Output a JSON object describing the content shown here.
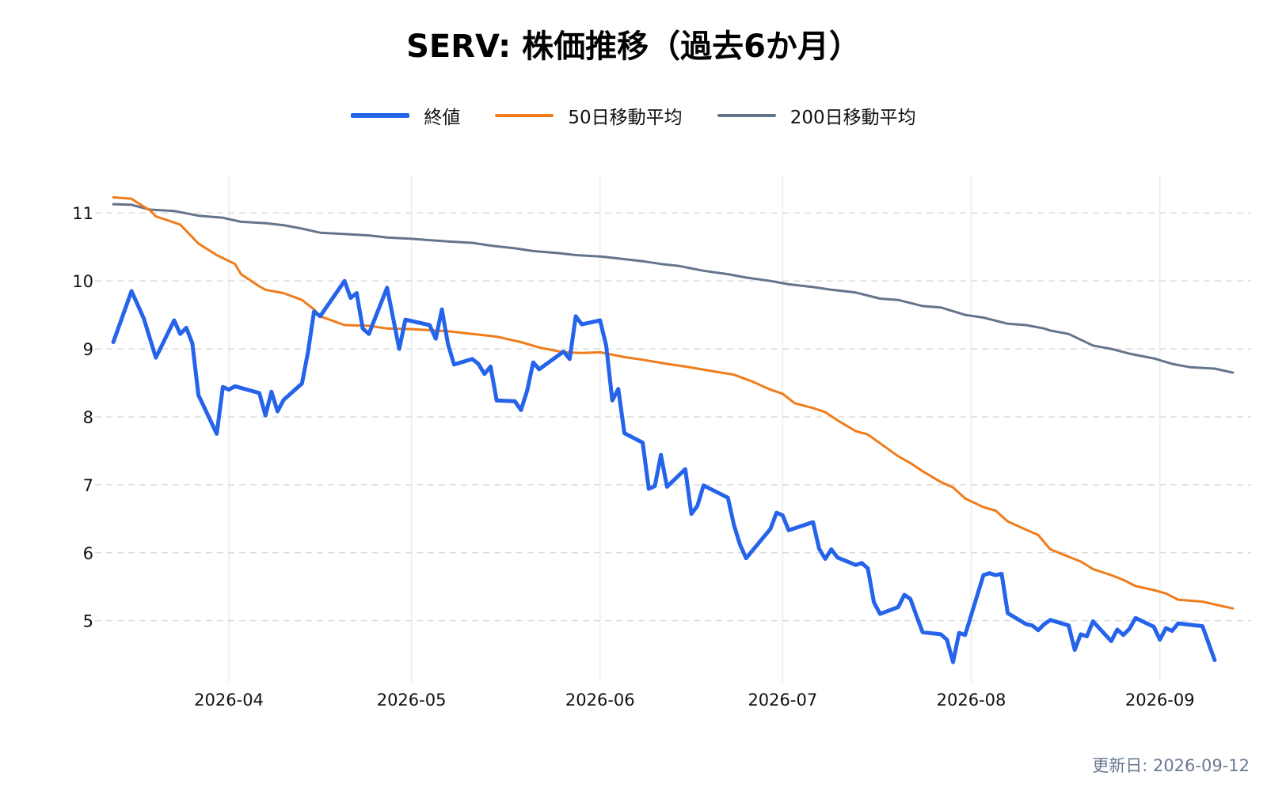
{
  "footer": {
    "updated": "更新日: 2026-09-12"
  },
  "chart_data": {
    "type": "line",
    "title": "SERV: 株価推移（過去6か月）",
    "xlabel": "",
    "ylabel": "",
    "xlim": [
      "2026-03-10",
      "2026-09-16"
    ],
    "ylim": [
      4.1,
      11.55
    ],
    "x_ticks": [
      "2026-04-01",
      "2026-05-01",
      "2026-06-01",
      "2026-07-01",
      "2026-08-01",
      "2026-09-01"
    ],
    "x_tick_labels": [
      "2026-04",
      "2026-05",
      "2026-06",
      "2026-07",
      "2026-08",
      "2026-09"
    ],
    "y_ticks": [
      5,
      6,
      7,
      8,
      9,
      10,
      11
    ],
    "grid": {
      "x": true,
      "y": true,
      "y_style": "dashed"
    },
    "legend": {
      "position": "top-center"
    },
    "series": [
      {
        "name": "終値",
        "color": "#2563eb",
        "points": [
          [
            "2026-03-13",
            9.1
          ],
          [
            "2026-03-16",
            9.85
          ],
          [
            "2026-03-18",
            9.45
          ],
          [
            "2026-03-20",
            8.87
          ],
          [
            "2026-03-23",
            9.42
          ],
          [
            "2026-03-24",
            9.22
          ],
          [
            "2026-03-25",
            9.31
          ],
          [
            "2026-03-26",
            9.08
          ],
          [
            "2026-03-27",
            8.32
          ],
          [
            "2026-03-30",
            7.75
          ],
          [
            "2026-03-31",
            8.44
          ],
          [
            "2026-04-01",
            8.4
          ],
          [
            "2026-04-02",
            8.45
          ],
          [
            "2026-04-06",
            8.35
          ],
          [
            "2026-04-07",
            8.02
          ],
          [
            "2026-04-08",
            8.37
          ],
          [
            "2026-04-09",
            8.08
          ],
          [
            "2026-04-10",
            8.25
          ],
          [
            "2026-04-13",
            8.49
          ],
          [
            "2026-04-14",
            8.95
          ],
          [
            "2026-04-15",
            9.55
          ],
          [
            "2026-04-16",
            9.48
          ],
          [
            "2026-04-20",
            10.0
          ],
          [
            "2026-04-21",
            9.75
          ],
          [
            "2026-04-22",
            9.82
          ],
          [
            "2026-04-23",
            9.3
          ],
          [
            "2026-04-24",
            9.22
          ],
          [
            "2026-04-27",
            9.9
          ],
          [
            "2026-04-29",
            9.0
          ],
          [
            "2026-04-30",
            9.43
          ],
          [
            "2026-05-04",
            9.35
          ],
          [
            "2026-05-05",
            9.15
          ],
          [
            "2026-05-06",
            9.58
          ],
          [
            "2026-05-07",
            9.07
          ],
          [
            "2026-05-08",
            8.77
          ],
          [
            "2026-05-11",
            8.85
          ],
          [
            "2026-05-12",
            8.78
          ],
          [
            "2026-05-13",
            8.63
          ],
          [
            "2026-05-14",
            8.74
          ],
          [
            "2026-05-15",
            8.24
          ],
          [
            "2026-05-18",
            8.23
          ],
          [
            "2026-05-19",
            8.1
          ],
          [
            "2026-05-20",
            8.38
          ],
          [
            "2026-05-21",
            8.8
          ],
          [
            "2026-05-22",
            8.7
          ],
          [
            "2026-05-26",
            8.96
          ],
          [
            "2026-05-27",
            8.85
          ],
          [
            "2026-05-28",
            9.48
          ],
          [
            "2026-05-29",
            9.36
          ],
          [
            "2026-06-01",
            9.42
          ],
          [
            "2026-06-02",
            9.05
          ],
          [
            "2026-06-03",
            8.24
          ],
          [
            "2026-06-04",
            8.41
          ],
          [
            "2026-06-05",
            7.76
          ],
          [
            "2026-06-08",
            7.62
          ],
          [
            "2026-06-09",
            6.94
          ],
          [
            "2026-06-10",
            6.98
          ],
          [
            "2026-06-11",
            7.44
          ],
          [
            "2026-06-12",
            6.97
          ],
          [
            "2026-06-15",
            7.23
          ],
          [
            "2026-06-16",
            6.57
          ],
          [
            "2026-06-17",
            6.69
          ],
          [
            "2026-06-18",
            6.99
          ],
          [
            "2026-06-22",
            6.81
          ],
          [
            "2026-06-23",
            6.41
          ],
          [
            "2026-06-24",
            6.12
          ],
          [
            "2026-06-25",
            5.92
          ],
          [
            "2026-06-29",
            6.35
          ],
          [
            "2026-06-30",
            6.59
          ],
          [
            "2026-07-01",
            6.55
          ],
          [
            "2026-07-02",
            6.33
          ],
          [
            "2026-07-06",
            6.45
          ],
          [
            "2026-07-07",
            6.06
          ],
          [
            "2026-07-08",
            5.91
          ],
          [
            "2026-07-09",
            6.05
          ],
          [
            "2026-07-10",
            5.93
          ],
          [
            "2026-07-13",
            5.82
          ],
          [
            "2026-07-14",
            5.85
          ],
          [
            "2026-07-15",
            5.77
          ],
          [
            "2026-07-16",
            5.27
          ],
          [
            "2026-07-17",
            5.1
          ],
          [
            "2026-07-20",
            5.2
          ],
          [
            "2026-07-21",
            5.38
          ],
          [
            "2026-07-22",
            5.32
          ],
          [
            "2026-07-23",
            5.07
          ],
          [
            "2026-07-24",
            4.83
          ],
          [
            "2026-07-27",
            4.8
          ],
          [
            "2026-07-28",
            4.72
          ],
          [
            "2026-07-29",
            4.39
          ],
          [
            "2026-07-30",
            4.82
          ],
          [
            "2026-07-31",
            4.79
          ],
          [
            "2026-08-03",
            5.67
          ],
          [
            "2026-08-04",
            5.7
          ],
          [
            "2026-08-05",
            5.67
          ],
          [
            "2026-08-06",
            5.69
          ],
          [
            "2026-08-07",
            5.11
          ],
          [
            "2026-08-10",
            4.95
          ],
          [
            "2026-08-11",
            4.93
          ],
          [
            "2026-08-12",
            4.86
          ],
          [
            "2026-08-13",
            4.95
          ],
          [
            "2026-08-14",
            5.01
          ],
          [
            "2026-08-17",
            4.93
          ],
          [
            "2026-08-18",
            4.57
          ],
          [
            "2026-08-19",
            4.8
          ],
          [
            "2026-08-20",
            4.77
          ],
          [
            "2026-08-21",
            4.99
          ],
          [
            "2026-08-24",
            4.7
          ],
          [
            "2026-08-25",
            4.87
          ],
          [
            "2026-08-26",
            4.79
          ],
          [
            "2026-08-27",
            4.88
          ],
          [
            "2026-08-28",
            5.04
          ],
          [
            "2026-08-31",
            4.91
          ],
          [
            "2026-09-01",
            4.72
          ],
          [
            "2026-09-02",
            4.89
          ],
          [
            "2026-09-03",
            4.85
          ],
          [
            "2026-09-04",
            4.96
          ],
          [
            "2026-09-08",
            4.92
          ],
          [
            "2026-09-10",
            4.42
          ]
        ]
      },
      {
        "name": "50日移動平均",
        "color": "#f07c1b",
        "points": [
          [
            "2026-03-13",
            11.23
          ],
          [
            "2026-03-16",
            11.21
          ],
          [
            "2026-03-17",
            11.15
          ],
          [
            "2026-03-19",
            11.04
          ],
          [
            "2026-03-20",
            10.95
          ],
          [
            "2026-03-24",
            10.83
          ],
          [
            "2026-03-27",
            10.55
          ],
          [
            "2026-03-30",
            10.38
          ],
          [
            "2026-04-02",
            10.25
          ],
          [
            "2026-04-03",
            10.1
          ],
          [
            "2026-04-06",
            9.92
          ],
          [
            "2026-04-07",
            9.87
          ],
          [
            "2026-04-10",
            9.82
          ],
          [
            "2026-04-13",
            9.72
          ],
          [
            "2026-04-15",
            9.58
          ],
          [
            "2026-04-16",
            9.48
          ],
          [
            "2026-04-20",
            9.35
          ],
          [
            "2026-04-24",
            9.34
          ],
          [
            "2026-04-27",
            9.3
          ],
          [
            "2026-05-01",
            9.29
          ],
          [
            "2026-05-07",
            9.26
          ],
          [
            "2026-05-12",
            9.21
          ],
          [
            "2026-05-15",
            9.18
          ],
          [
            "2026-05-19",
            9.1
          ],
          [
            "2026-05-22",
            9.02
          ],
          [
            "2026-05-26",
            8.95
          ],
          [
            "2026-05-29",
            8.94
          ],
          [
            "2026-06-01",
            8.95
          ],
          [
            "2026-06-05",
            8.88
          ],
          [
            "2026-06-08",
            8.84
          ],
          [
            "2026-06-12",
            8.78
          ],
          [
            "2026-06-15",
            8.74
          ],
          [
            "2026-06-19",
            8.68
          ],
          [
            "2026-06-23",
            8.62
          ],
          [
            "2026-06-26",
            8.52
          ],
          [
            "2026-06-29",
            8.4
          ],
          [
            "2026-07-01",
            8.34
          ],
          [
            "2026-07-03",
            8.2
          ],
          [
            "2026-07-06",
            8.13
          ],
          [
            "2026-07-08",
            8.07
          ],
          [
            "2026-07-10",
            7.95
          ],
          [
            "2026-07-13",
            7.79
          ],
          [
            "2026-07-15",
            7.74
          ],
          [
            "2026-07-20",
            7.42
          ],
          [
            "2026-07-22",
            7.32
          ],
          [
            "2026-07-24",
            7.2
          ],
          [
            "2026-07-27",
            7.04
          ],
          [
            "2026-07-29",
            6.96
          ],
          [
            "2026-07-31",
            6.8
          ],
          [
            "2026-08-03",
            6.67
          ],
          [
            "2026-08-05",
            6.62
          ],
          [
            "2026-08-07",
            6.46
          ],
          [
            "2026-08-10",
            6.34
          ],
          [
            "2026-08-12",
            6.26
          ],
          [
            "2026-08-14",
            6.05
          ],
          [
            "2026-08-17",
            5.94
          ],
          [
            "2026-08-19",
            5.87
          ],
          [
            "2026-08-21",
            5.76
          ],
          [
            "2026-08-24",
            5.67
          ],
          [
            "2026-08-26",
            5.6
          ],
          [
            "2026-08-28",
            5.51
          ],
          [
            "2026-08-31",
            5.45
          ],
          [
            "2026-09-02",
            5.4
          ],
          [
            "2026-09-04",
            5.31
          ],
          [
            "2026-09-08",
            5.28
          ],
          [
            "2026-09-10",
            5.24
          ],
          [
            "2026-09-13",
            5.18
          ]
        ]
      },
      {
        "name": "200日移動平均",
        "color": "#64748b",
        "points": [
          [
            "2026-03-13",
            11.13
          ],
          [
            "2026-03-16",
            11.12
          ],
          [
            "2026-03-19",
            11.05
          ],
          [
            "2026-03-23",
            11.03
          ],
          [
            "2026-03-27",
            10.96
          ],
          [
            "2026-03-31",
            10.93
          ],
          [
            "2026-04-03",
            10.87
          ],
          [
            "2026-04-07",
            10.85
          ],
          [
            "2026-04-10",
            10.82
          ],
          [
            "2026-04-13",
            10.77
          ],
          [
            "2026-04-16",
            10.71
          ],
          [
            "2026-04-20",
            10.69
          ],
          [
            "2026-04-24",
            10.67
          ],
          [
            "2026-04-27",
            10.64
          ],
          [
            "2026-05-01",
            10.62
          ],
          [
            "2026-05-04",
            10.6
          ],
          [
            "2026-05-07",
            10.58
          ],
          [
            "2026-05-11",
            10.56
          ],
          [
            "2026-05-14",
            10.52
          ],
          [
            "2026-05-18",
            10.48
          ],
          [
            "2026-05-21",
            10.44
          ],
          [
            "2026-05-25",
            10.41
          ],
          [
            "2026-05-28",
            10.38
          ],
          [
            "2026-06-01",
            10.36
          ],
          [
            "2026-06-04",
            10.33
          ],
          [
            "2026-06-08",
            10.29
          ],
          [
            "2026-06-11",
            10.25
          ],
          [
            "2026-06-14",
            10.22
          ],
          [
            "2026-06-18",
            10.15
          ],
          [
            "2026-06-22",
            10.1
          ],
          [
            "2026-06-25",
            10.05
          ],
          [
            "2026-06-29",
            10.0
          ],
          [
            "2026-07-02",
            9.95
          ],
          [
            "2026-07-06",
            9.91
          ],
          [
            "2026-07-09",
            9.87
          ],
          [
            "2026-07-13",
            9.83
          ],
          [
            "2026-07-17",
            9.74
          ],
          [
            "2026-07-20",
            9.72
          ],
          [
            "2026-07-24",
            9.63
          ],
          [
            "2026-07-27",
            9.61
          ],
          [
            "2026-07-31",
            9.5
          ],
          [
            "2026-08-03",
            9.46
          ],
          [
            "2026-08-07",
            9.37
          ],
          [
            "2026-08-10",
            9.35
          ],
          [
            "2026-08-13",
            9.3
          ],
          [
            "2026-08-14",
            9.27
          ],
          [
            "2026-08-17",
            9.22
          ],
          [
            "2026-08-21",
            9.05
          ],
          [
            "2026-08-24",
            9.0
          ],
          [
            "2026-08-27",
            8.93
          ],
          [
            "2026-08-31",
            8.86
          ],
          [
            "2026-09-03",
            8.78
          ],
          [
            "2026-09-06",
            8.73
          ],
          [
            "2026-09-10",
            8.71
          ],
          [
            "2026-09-13",
            8.65
          ]
        ]
      }
    ]
  }
}
